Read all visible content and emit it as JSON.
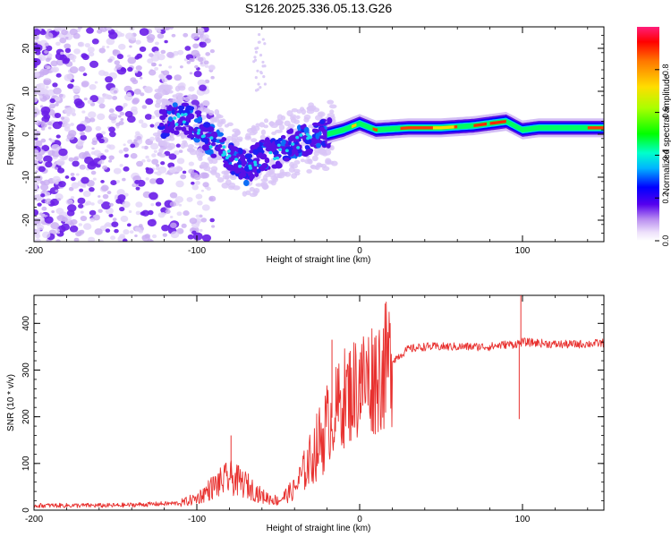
{
  "title": "S126.2025.336.05.13.G26",
  "chart_data": [
    {
      "type": "heatmap",
      "name": "spectrogram",
      "xlabel": "Height of straight line (km)",
      "ylabel": "Frequency (Hz)",
      "xlim": [
        -200,
        150
      ],
      "ylim": [
        -25,
        25
      ],
      "x_ticks": [
        -200,
        -100,
        0,
        100
      ],
      "y_ticks": [
        -20,
        -10,
        0,
        10,
        20
      ],
      "colorbar": {
        "label": "Normalized spectral amplitude",
        "range": [
          0,
          1
        ],
        "ticks": [
          0,
          0.2,
          0.4,
          0.6,
          0.8
        ]
      },
      "ridge": {
        "x": [
          -120,
          -110,
          -100,
          -90,
          -80,
          -70,
          -60,
          -50,
          -40,
          -30,
          -20,
          -10,
          0,
          10,
          30,
          50,
          70,
          80,
          90,
          100,
          110,
          130,
          150
        ],
        "freq": [
          3,
          4,
          2,
          -2,
          -5,
          -8,
          -5,
          -4,
          -2,
          -1,
          0,
          1,
          2.5,
          1,
          1.5,
          1.5,
          2,
          2.5,
          3,
          1,
          1.5,
          1.5,
          1.5
        ]
      }
    },
    {
      "type": "line",
      "name": "snr",
      "xlabel": "Height of straight line (km)",
      "ylabel": "SNR (10 * v/v)",
      "xlim": [
        -200,
        150
      ],
      "ylim": [
        0,
        460
      ],
      "x_ticks": [
        -200,
        -100,
        0,
        100
      ],
      "y_ticks": [
        0,
        100,
        200,
        300,
        400
      ],
      "color": "#e8312f",
      "envelope": {
        "x": [
          -200,
          -150,
          -110,
          -100,
          -90,
          -80,
          -70,
          -60,
          -50,
          -40,
          -30,
          -20,
          -10,
          0,
          10,
          20,
          30,
          40,
          50,
          60,
          70,
          80,
          90,
          95,
          100,
          110,
          120,
          130,
          140,
          150
        ],
        "y": [
          10,
          10,
          15,
          25,
          50,
          70,
          55,
          30,
          20,
          45,
          110,
          180,
          240,
          270,
          290,
          320,
          345,
          350,
          350,
          350,
          350,
          350,
          355,
          355,
          360,
          358,
          355,
          355,
          356,
          358
        ]
      },
      "spikes": [
        {
          "x": -79,
          "y": 160
        },
        {
          "x": -17,
          "y": 365
        },
        {
          "x": 0.5,
          "y": 338
        },
        {
          "x": 99,
          "y": 460
        },
        {
          "x": 98,
          "y": 195
        }
      ]
    }
  ]
}
